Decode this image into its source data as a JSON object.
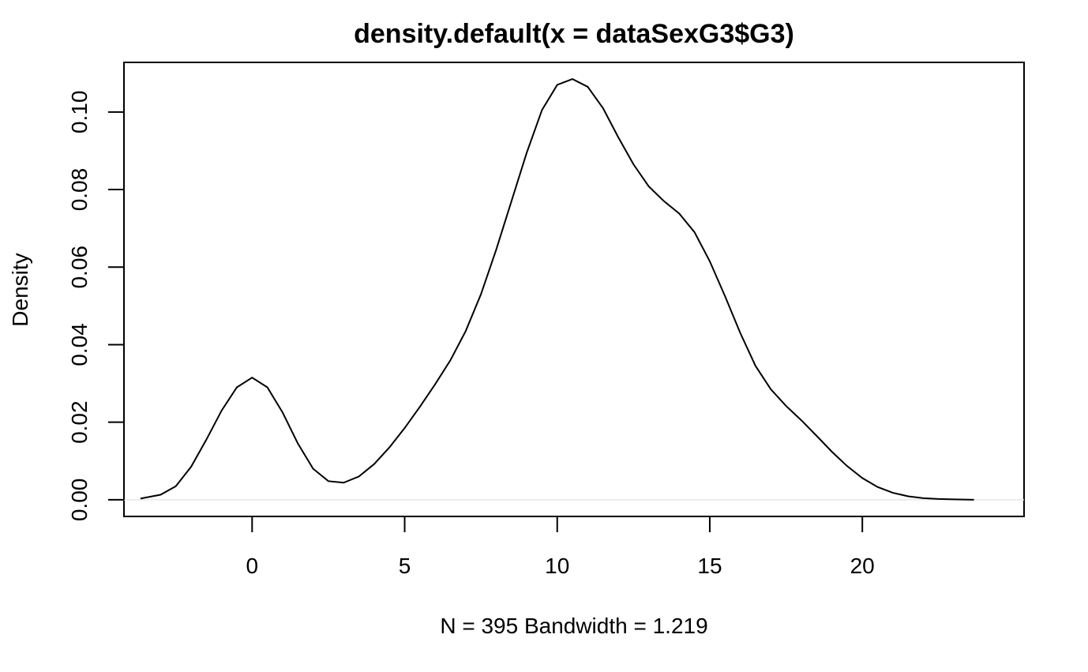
{
  "chart_data": {
    "type": "line",
    "title": "density.default(x = dataSexG3$G3)",
    "xlabel": "N = 395   Bandwidth = 1.219",
    "ylabel": "Density",
    "xlim": [
      -4.2,
      25.3
    ],
    "ylim": [
      -0.0043,
      0.1128
    ],
    "x_ticks": [
      0,
      5,
      10,
      15,
      20
    ],
    "x_tick_labels": [
      "0",
      "5",
      "10",
      "15",
      "20"
    ],
    "y_ticks": [
      0.0,
      0.02,
      0.04,
      0.06,
      0.08,
      0.1
    ],
    "y_tick_labels": [
      "0.00",
      "0.02",
      "0.04",
      "0.06",
      "0.08",
      "0.10"
    ],
    "grid": false,
    "baseline": 0,
    "baseline_color": "#e6e6e6",
    "line_color": "#000000",
    "series": [
      {
        "x": [
          -3.66,
          -3.0,
          -2.5,
          -2.0,
          -1.5,
          -1.0,
          -0.5,
          0.0,
          0.5,
          1.0,
          1.5,
          2.0,
          2.5,
          3.0,
          3.5,
          4.0,
          4.5,
          5.0,
          5.5,
          6.0,
          6.5,
          7.0,
          7.5,
          8.0,
          8.5,
          9.0,
          9.5,
          10.0,
          10.5,
          11.0,
          11.5,
          12.0,
          12.5,
          13.0,
          13.5,
          14.0,
          14.5,
          15.0,
          15.5,
          16.0,
          16.5,
          17.0,
          17.5,
          18.0,
          18.5,
          19.0,
          19.5,
          20.0,
          20.5,
          21.0,
          21.5,
          22.0,
          22.5,
          23.0,
          23.66
        ],
        "y": [
          0.0003,
          0.0013,
          0.0035,
          0.0085,
          0.0155,
          0.023,
          0.029,
          0.0315,
          0.029,
          0.0225,
          0.0145,
          0.008,
          0.0048,
          0.0044,
          0.006,
          0.0092,
          0.0135,
          0.0185,
          0.024,
          0.0298,
          0.036,
          0.0435,
          0.053,
          0.0645,
          0.077,
          0.0895,
          0.1005,
          0.107,
          0.1085,
          0.1065,
          0.101,
          0.0935,
          0.0865,
          0.0808,
          0.077,
          0.0738,
          0.069,
          0.0615,
          0.0525,
          0.043,
          0.0345,
          0.0285,
          0.0242,
          0.0205,
          0.0165,
          0.0124,
          0.0087,
          0.0056,
          0.0033,
          0.0018,
          0.0009,
          0.0004,
          0.0002,
          0.0001,
          0.0
        ]
      }
    ]
  }
}
